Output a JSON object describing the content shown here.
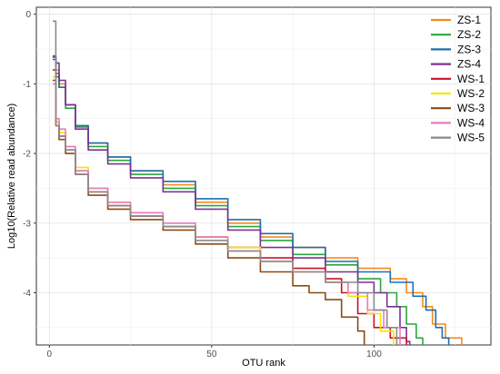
{
  "chart_data": {
    "type": "line",
    "xlabel": "OTU rank",
    "ylabel": "Log10(Relative read abundance)",
    "xlim": [
      -4,
      136
    ],
    "ylim": [
      -4.75,
      0.1
    ],
    "xticks": [
      0,
      50,
      100
    ],
    "yticks": [
      0,
      -1,
      -2,
      -3,
      -4
    ],
    "grid": true,
    "legend_position": "top-right",
    "series": [
      {
        "name": "ZS-1",
        "color": "#f28b1f",
        "points": [
          [
            1,
            -0.6
          ],
          [
            2,
            -0.8
          ],
          [
            3,
            -1.0
          ],
          [
            5,
            -1.3
          ],
          [
            8,
            -1.6
          ],
          [
            12,
            -1.85
          ],
          [
            18,
            -2.05
          ],
          [
            25,
            -2.25
          ],
          [
            35,
            -2.45
          ],
          [
            45,
            -2.7
          ],
          [
            55,
            -3.0
          ],
          [
            65,
            -3.2
          ],
          [
            75,
            -3.35
          ],
          [
            85,
            -3.5
          ],
          [
            95,
            -3.65
          ],
          [
            105,
            -3.8
          ],
          [
            110,
            -4.0
          ],
          [
            115,
            -4.2
          ],
          [
            118,
            -4.45
          ],
          [
            122,
            -4.65
          ],
          [
            127,
            -4.75
          ]
        ]
      },
      {
        "name": "ZS-2",
        "color": "#2ca63c",
        "points": [
          [
            1,
            -0.62
          ],
          [
            2,
            -0.85
          ],
          [
            3,
            -1.05
          ],
          [
            5,
            -1.35
          ],
          [
            8,
            -1.62
          ],
          [
            12,
            -1.9
          ],
          [
            18,
            -2.1
          ],
          [
            25,
            -2.3
          ],
          [
            35,
            -2.5
          ],
          [
            45,
            -2.75
          ],
          [
            55,
            -3.05
          ],
          [
            65,
            -3.25
          ],
          [
            75,
            -3.45
          ],
          [
            85,
            -3.6
          ],
          [
            95,
            -3.8
          ],
          [
            102,
            -4.0
          ],
          [
            107,
            -4.2
          ],
          [
            110,
            -4.45
          ],
          [
            113,
            -4.65
          ],
          [
            115,
            -4.75
          ]
        ]
      },
      {
        "name": "ZS-3",
        "color": "#1f6fae",
        "points": [
          [
            1,
            -0.65
          ],
          [
            2,
            -0.9
          ],
          [
            3,
            -1.05
          ],
          [
            5,
            -1.3
          ],
          [
            8,
            -1.6
          ],
          [
            12,
            -1.85
          ],
          [
            18,
            -2.05
          ],
          [
            25,
            -2.25
          ],
          [
            35,
            -2.4
          ],
          [
            45,
            -2.65
          ],
          [
            55,
            -2.95
          ],
          [
            65,
            -3.15
          ],
          [
            75,
            -3.35
          ],
          [
            85,
            -3.55
          ],
          [
            95,
            -3.7
          ],
          [
            105,
            -3.85
          ],
          [
            112,
            -4.05
          ],
          [
            116,
            -4.25
          ],
          [
            119,
            -4.5
          ],
          [
            121,
            -4.65
          ],
          [
            123,
            -4.75
          ]
        ]
      },
      {
        "name": "ZS-4",
        "color": "#7b3294",
        "points": [
          [
            1,
            -0.6
          ],
          [
            2,
            -0.7
          ],
          [
            3,
            -0.95
          ],
          [
            5,
            -1.3
          ],
          [
            8,
            -1.65
          ],
          [
            12,
            -1.95
          ],
          [
            18,
            -2.15
          ],
          [
            25,
            -2.35
          ],
          [
            35,
            -2.55
          ],
          [
            45,
            -2.8
          ],
          [
            55,
            -3.1
          ],
          [
            65,
            -3.35
          ],
          [
            75,
            -3.5
          ],
          [
            85,
            -3.7
          ],
          [
            95,
            -3.85
          ],
          [
            100,
            -4.0
          ],
          [
            104,
            -4.2
          ],
          [
            108,
            -4.5
          ],
          [
            110,
            -4.7
          ],
          [
            111,
            -4.75
          ]
        ]
      },
      {
        "name": "WS-1",
        "color": "#c8102e",
        "points": [
          [
            1,
            -0.8
          ],
          [
            2,
            -1.55
          ],
          [
            3,
            -1.75
          ],
          [
            5,
            -1.95
          ],
          [
            8,
            -2.25
          ],
          [
            12,
            -2.55
          ],
          [
            18,
            -2.75
          ],
          [
            25,
            -2.9
          ],
          [
            35,
            -3.05
          ],
          [
            45,
            -3.2
          ],
          [
            55,
            -3.35
          ],
          [
            65,
            -3.5
          ],
          [
            75,
            -3.65
          ],
          [
            85,
            -3.8
          ],
          [
            90,
            -4.0
          ],
          [
            95,
            -4.3
          ],
          [
            100,
            -4.5
          ],
          [
            105,
            -4.65
          ],
          [
            110,
            -4.75
          ]
        ]
      },
      {
        "name": "WS-2",
        "color": "#f2e600",
        "points": [
          [
            1,
            -0.9
          ],
          [
            2,
            -1.55
          ],
          [
            3,
            -1.7
          ],
          [
            5,
            -1.9
          ],
          [
            8,
            -2.2
          ],
          [
            12,
            -2.5
          ],
          [
            18,
            -2.7
          ],
          [
            25,
            -2.85
          ],
          [
            35,
            -3.0
          ],
          [
            45,
            -3.2
          ],
          [
            55,
            -3.35
          ],
          [
            65,
            -3.55
          ],
          [
            75,
            -3.7
          ],
          [
            85,
            -3.85
          ],
          [
            92,
            -4.05
          ],
          [
            98,
            -4.3
          ],
          [
            102,
            -4.55
          ],
          [
            106,
            -4.75
          ]
        ]
      },
      {
        "name": "WS-3",
        "color": "#8c4a12",
        "points": [
          [
            1,
            -0.95
          ],
          [
            2,
            -1.6
          ],
          [
            3,
            -1.8
          ],
          [
            5,
            -2.0
          ],
          [
            8,
            -2.3
          ],
          [
            12,
            -2.6
          ],
          [
            18,
            -2.8
          ],
          [
            25,
            -2.95
          ],
          [
            35,
            -3.1
          ],
          [
            45,
            -3.3
          ],
          [
            55,
            -3.5
          ],
          [
            65,
            -3.7
          ],
          [
            75,
            -3.9
          ],
          [
            80,
            -4.0
          ],
          [
            85,
            -4.1
          ],
          [
            90,
            -4.35
          ],
          [
            95,
            -4.55
          ],
          [
            97,
            -4.75
          ]
        ]
      },
      {
        "name": "WS-4",
        "color": "#e87bbf",
        "points": [
          [
            1,
            -1.0
          ],
          [
            2,
            -1.5
          ],
          [
            3,
            -1.65
          ],
          [
            5,
            -1.9
          ],
          [
            8,
            -2.25
          ],
          [
            12,
            -2.5
          ],
          [
            18,
            -2.7
          ],
          [
            25,
            -2.85
          ],
          [
            35,
            -3.0
          ],
          [
            45,
            -3.2
          ],
          [
            55,
            -3.4
          ],
          [
            65,
            -3.55
          ],
          [
            75,
            -3.7
          ],
          [
            85,
            -3.85
          ],
          [
            92,
            -4.0
          ],
          [
            98,
            -4.25
          ],
          [
            103,
            -4.5
          ],
          [
            108,
            -4.75
          ]
        ]
      },
      {
        "name": "WS-5",
        "color": "#8a8a8a",
        "points": [
          [
            1,
            -0.1
          ],
          [
            2,
            -1.6
          ],
          [
            3,
            -1.75
          ],
          [
            5,
            -1.95
          ],
          [
            8,
            -2.3
          ],
          [
            12,
            -2.55
          ],
          [
            18,
            -2.75
          ],
          [
            25,
            -2.9
          ],
          [
            35,
            -3.05
          ],
          [
            45,
            -3.25
          ],
          [
            55,
            -3.4
          ],
          [
            65,
            -3.55
          ],
          [
            75,
            -3.7
          ],
          [
            85,
            -3.85
          ],
          [
            95,
            -4.0
          ],
          [
            100,
            -4.25
          ],
          [
            104,
            -4.5
          ],
          [
            107,
            -4.75
          ]
        ]
      }
    ]
  }
}
